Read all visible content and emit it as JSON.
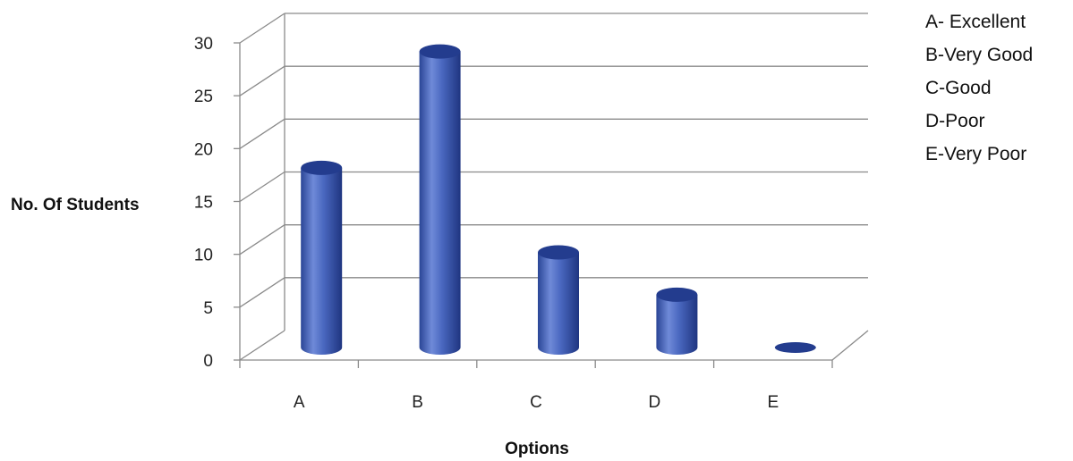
{
  "chart_data": {
    "type": "bar",
    "style": "3d-cylinder",
    "categories": [
      "A",
      "B",
      "C",
      "D",
      "E"
    ],
    "series": [
      {
        "values": [
          17,
          28,
          9,
          5,
          0
        ]
      }
    ],
    "xlabel": "Options",
    "ylabel": "No. Of Students",
    "ylim": [
      0,
      30
    ],
    "yticks": [
      0,
      5,
      10,
      15,
      20,
      25,
      30
    ],
    "grid": true,
    "legend_position": "top-right",
    "legend": [
      "A- Excellent",
      "B-Very Good",
      "C-Good",
      "D-Poor",
      "E-Very Poor"
    ],
    "colors": {
      "bar": "#4a68c0",
      "bar_dark": "#233c8e",
      "bar_light": "#8fa6e8",
      "grid": "#8a8a8a"
    }
  }
}
